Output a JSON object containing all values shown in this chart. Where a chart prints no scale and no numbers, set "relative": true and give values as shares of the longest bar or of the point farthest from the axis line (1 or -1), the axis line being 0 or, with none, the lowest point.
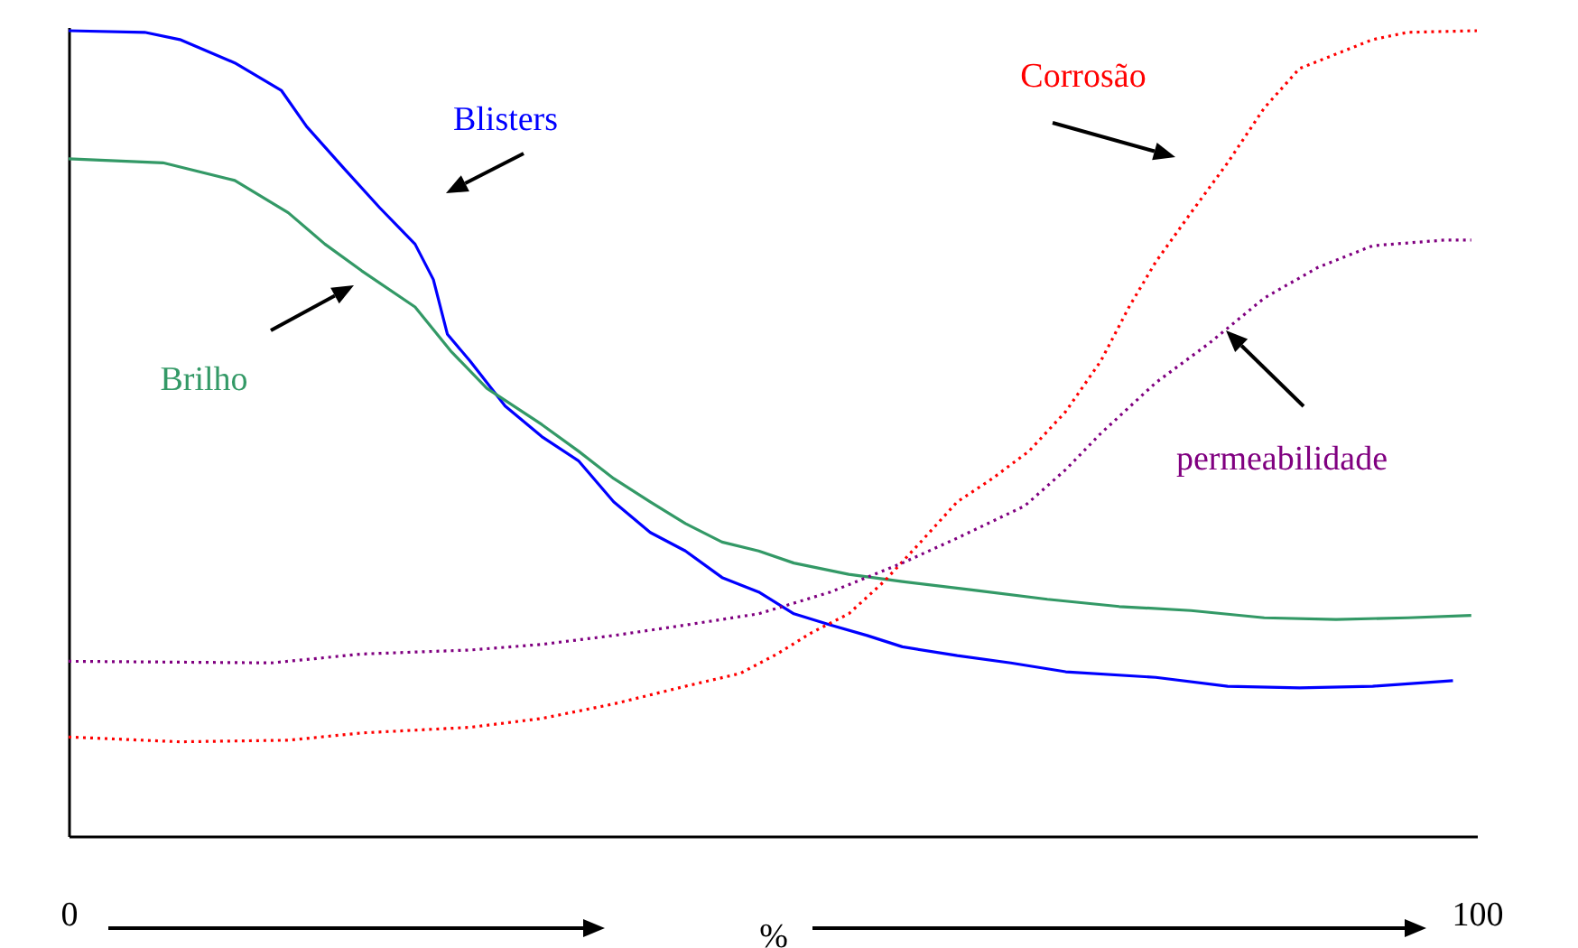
{
  "chart_data": {
    "type": "line",
    "relative": true,
    "xlabel": "%",
    "xlim": [
      0,
      100
    ],
    "xticks": [
      0,
      100
    ],
    "grid": false,
    "marker": "none",
    "series": [
      {
        "name": "Blisters",
        "color": "#0000ff",
        "line_style": "solid",
        "x": [
          0,
          5.4,
          7.9,
          11.8,
          15.1,
          16.9,
          19.5,
          22.1,
          24.6,
          25.9,
          26.9,
          28.5,
          31,
          33.6,
          36.2,
          38.7,
          41.3,
          43.8,
          46.4,
          49,
          51.5,
          54.1,
          56.7,
          59.2,
          63.1,
          66.9,
          70.8,
          77.2,
          82.3,
          87.4,
          92.6,
          98.3
        ],
        "values": [
          1,
          0.998,
          0.989,
          0.96,
          0.926,
          0.881,
          0.83,
          0.78,
          0.735,
          0.691,
          0.623,
          0.59,
          0.534,
          0.496,
          0.466,
          0.415,
          0.377,
          0.354,
          0.321,
          0.303,
          0.276,
          0.262,
          0.249,
          0.235,
          0.224,
          0.215,
          0.204,
          0.197,
          0.186,
          0.184,
          0.186,
          0.193
        ]
      },
      {
        "name": "Brilho",
        "color": "#339966",
        "line_style": "solid",
        "x": [
          0,
          6.7,
          11.8,
          15.6,
          18.2,
          20.8,
          24.6,
          27.2,
          29.7,
          33.6,
          36.2,
          38.7,
          41.3,
          43.8,
          46.4,
          49,
          51.5,
          55.4,
          59.2,
          64.4,
          69.5,
          74.6,
          79.7,
          84.9,
          90,
          95.1,
          99.6
        ],
        "values": [
          0.841,
          0.836,
          0.814,
          0.774,
          0.735,
          0.702,
          0.657,
          0.601,
          0.556,
          0.511,
          0.478,
          0.444,
          0.415,
          0.388,
          0.365,
          0.354,
          0.339,
          0.325,
          0.316,
          0.305,
          0.294,
          0.285,
          0.28,
          0.271,
          0.269,
          0.271,
          0.274
        ]
      },
      {
        "name": "Corrosão",
        "color": "#ff0000",
        "line_style": "dotted",
        "x": [
          0,
          7.9,
          15.6,
          20.8,
          28.5,
          33.6,
          38.7,
          43.8,
          47.7,
          50.3,
          52.8,
          55.4,
          57.9,
          60.5,
          63.1,
          65.6,
          68.2,
          70.8,
          73.3,
          75.3,
          77.2,
          79.7,
          82.3,
          84.9,
          87.4,
          90,
          92.6,
          95.1,
          100
        ],
        "values": [
          0.123,
          0.117,
          0.119,
          0.128,
          0.135,
          0.146,
          0.164,
          0.186,
          0.202,
          0.226,
          0.253,
          0.276,
          0.316,
          0.365,
          0.415,
          0.444,
          0.478,
          0.527,
          0.59,
          0.657,
          0.713,
          0.774,
          0.836,
          0.904,
          0.953,
          0.971,
          0.989,
          0.998,
          1
        ]
      },
      {
        "name": "permeabilidade",
        "color": "#800080",
        "line_style": "dotted",
        "x": [
          0,
          14.4,
          20.8,
          28.5,
          33.6,
          38.7,
          43.8,
          49,
          54.1,
          59.2,
          63.1,
          67.9,
          70.8,
          73.3,
          77.2,
          81,
          84.9,
          88.7,
          92.6,
          97.7,
          99.6
        ],
        "values": [
          0.217,
          0.215,
          0.226,
          0.231,
          0.238,
          0.249,
          0.262,
          0.276,
          0.303,
          0.339,
          0.37,
          0.41,
          0.455,
          0.5,
          0.563,
          0.612,
          0.668,
          0.706,
          0.733,
          0.74,
          0.74
        ]
      }
    ]
  }
}
